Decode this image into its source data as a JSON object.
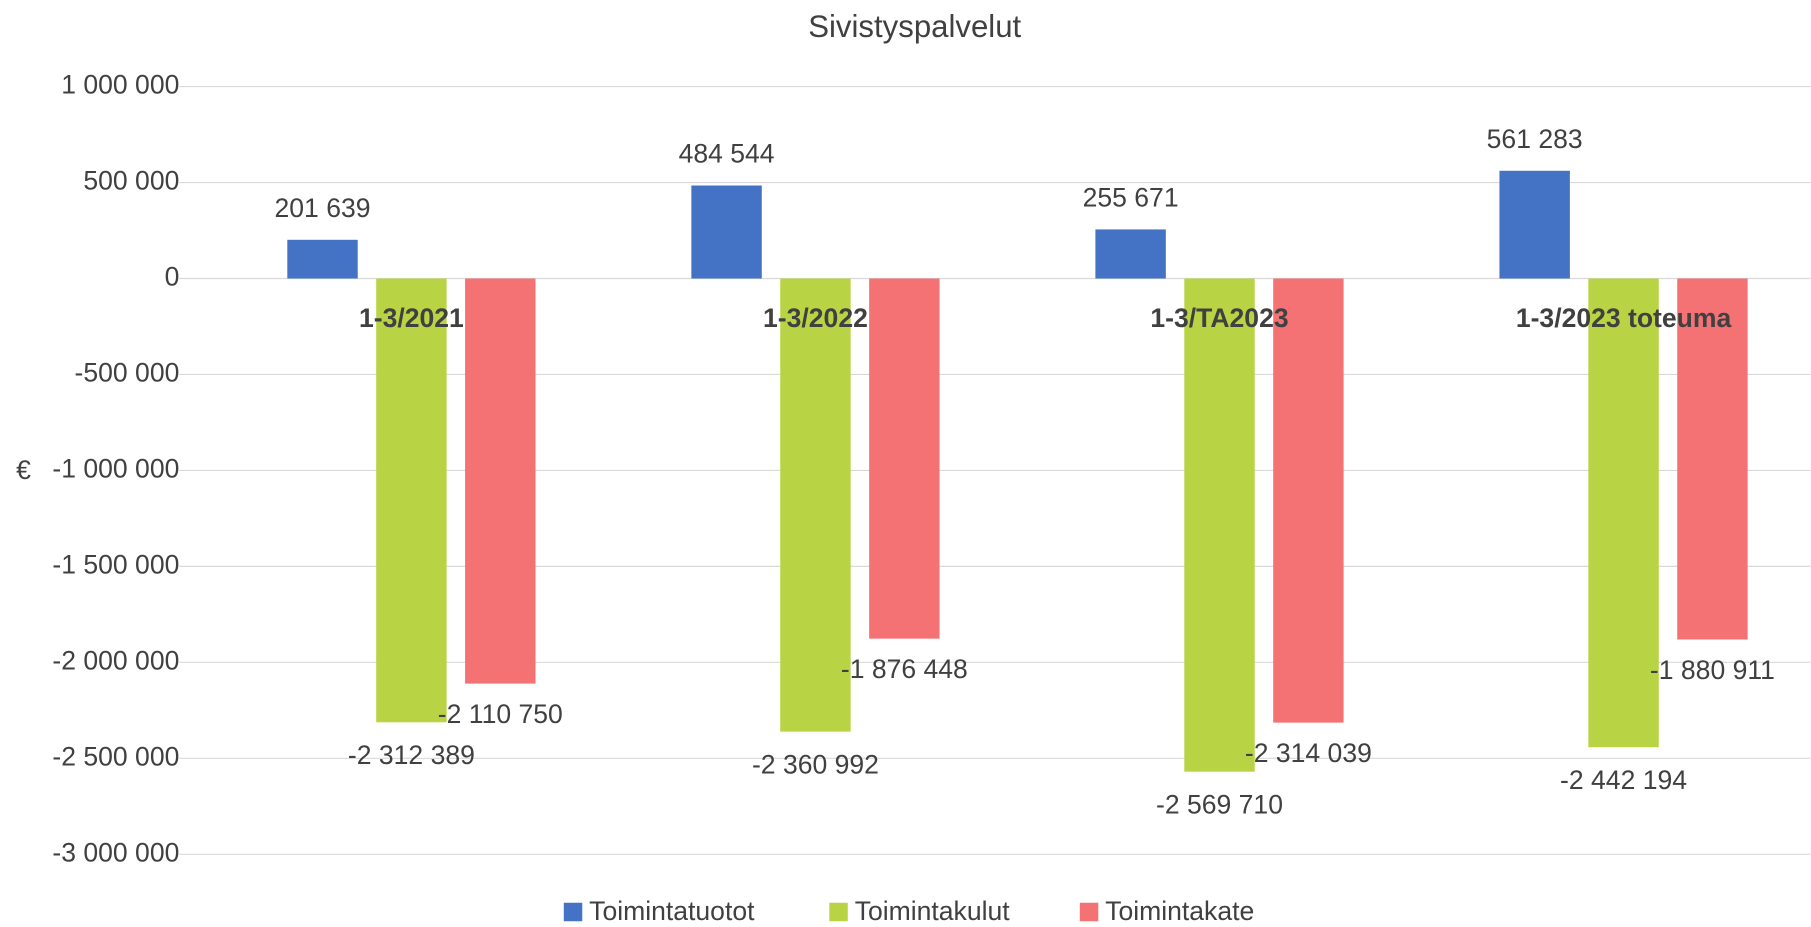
{
  "chart_data": {
    "type": "bar",
    "title": "Sivistyspalvelut",
    "y_label": "€",
    "categories": [
      "1-3/2021",
      "1-3/2022",
      "1-3/TA2023",
      "1-3/2023 toteuma"
    ],
    "series": [
      {
        "name": "Toimintatuotot",
        "color": "#4472c4",
        "values": [
          201639,
          484544,
          255671,
          561283
        ],
        "value_labels": [
          "201 639",
          "484 544",
          "255 671",
          "561 283"
        ]
      },
      {
        "name": "Toimintakulut",
        "color": "#b8d445",
        "values": [
          -2312389,
          -2360992,
          -2569710,
          -2442194
        ],
        "value_labels": [
          "-2 312 389",
          "-2 360 992",
          "-2 569 710",
          "-2 442 194"
        ]
      },
      {
        "name": "Toimintakate",
        "color": "#f47174",
        "values": [
          -2110750,
          -1876448,
          -2314039,
          -1880911
        ],
        "value_labels": [
          "-2 110 750",
          "-1 876 448",
          "-2 314 039",
          "-1 880 911"
        ]
      }
    ],
    "ylim": [
      -3000000,
      1000000
    ],
    "yticks": [
      {
        "value": -3000000,
        "label": "-3 000 000"
      },
      {
        "value": -2500000,
        "label": "-2 500 000"
      },
      {
        "value": -2000000,
        "label": "-2 000 000"
      },
      {
        "value": -1500000,
        "label": "-1 500 000"
      },
      {
        "value": -1000000,
        "label": "-1 000 000"
      },
      {
        "value": -500000,
        "label": "-500 000"
      },
      0,
      {
        "value": 500000,
        "label": "500 000"
      },
      {
        "value": 1000000,
        "label": "1 000 000"
      }
    ],
    "grid": true,
    "legend": "bottom"
  }
}
